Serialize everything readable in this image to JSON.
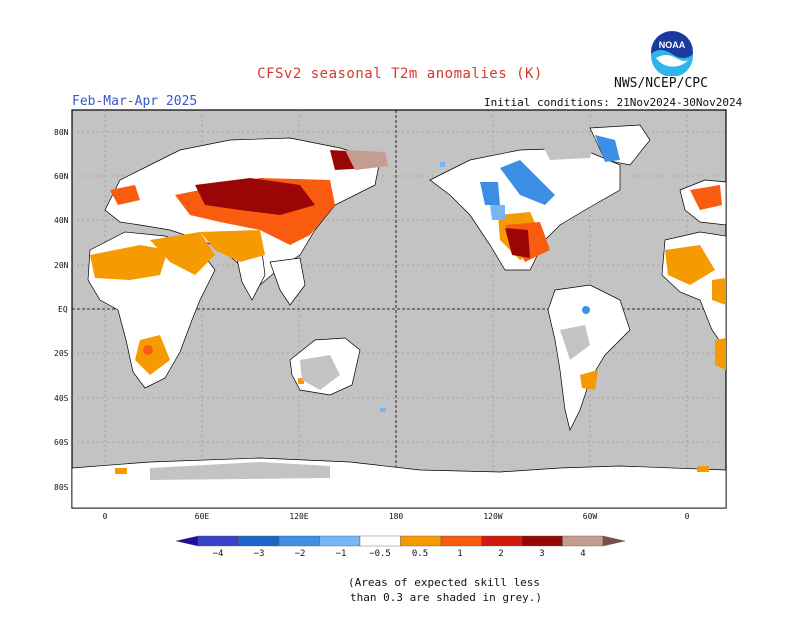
{
  "header": {
    "title": "CFSv2 seasonal T2m anomalies (K)",
    "agency": "NWS/NCEP/CPC",
    "season": "Feb-Mar-Apr 2025",
    "initial_conditions": "Initial conditions: 21Nov2024-30Nov2024",
    "logo_text": "NOAA"
  },
  "map": {
    "lat_labels": [
      "80N",
      "60N",
      "40N",
      "20N",
      "EQ",
      "20S",
      "40S",
      "60S",
      "80S"
    ],
    "lon_labels": [
      "0",
      "60E",
      "120E",
      "180",
      "120W",
      "60W",
      "0"
    ]
  },
  "legend": {
    "colors": [
      "#1e0f9a",
      "#3a3fcb",
      "#1f65c9",
      "#3d8fe6",
      "#77b6f5",
      "#ffffff",
      "#f59a00",
      "#f95c0f",
      "#d01a10",
      "#9a0606",
      "#c69c90",
      "#7e4e46"
    ],
    "tick_labels": [
      "−4",
      "−3",
      "−2",
      "−1",
      "−0.5",
      "0.5",
      "1",
      "2",
      "3",
      "4"
    ]
  },
  "footnote": {
    "line1": "(Areas of expected skill less",
    "line2": "than 0.3 are shaded in grey.)"
  }
}
